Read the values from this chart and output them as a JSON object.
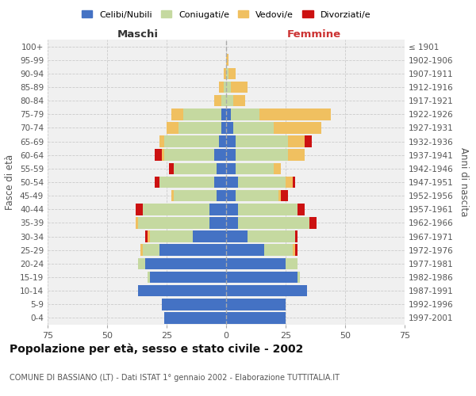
{
  "age_groups": [
    "0-4",
    "5-9",
    "10-14",
    "15-19",
    "20-24",
    "25-29",
    "30-34",
    "35-39",
    "40-44",
    "45-49",
    "50-54",
    "55-59",
    "60-64",
    "65-69",
    "70-74",
    "75-79",
    "80-84",
    "85-89",
    "90-94",
    "95-99",
    "100+"
  ],
  "birth_years": [
    "1997-2001",
    "1992-1996",
    "1987-1991",
    "1982-1986",
    "1977-1981",
    "1972-1976",
    "1967-1971",
    "1962-1966",
    "1957-1961",
    "1952-1956",
    "1947-1951",
    "1942-1946",
    "1937-1941",
    "1932-1936",
    "1927-1931",
    "1922-1926",
    "1917-1921",
    "1912-1916",
    "1907-1911",
    "1902-1906",
    "≤ 1901"
  ],
  "male": {
    "celibi": [
      26,
      27,
      37,
      32,
      34,
      28,
      14,
      7,
      7,
      4,
      5,
      4,
      5,
      3,
      2,
      2,
      0,
      0,
      0,
      0,
      0
    ],
    "coniugati": [
      0,
      0,
      0,
      1,
      3,
      7,
      18,
      30,
      28,
      18,
      23,
      18,
      21,
      23,
      18,
      16,
      2,
      1,
      0,
      0,
      0
    ],
    "vedovi": [
      0,
      0,
      0,
      0,
      0,
      1,
      1,
      1,
      0,
      1,
      0,
      0,
      1,
      2,
      5,
      5,
      3,
      2,
      1,
      0,
      0
    ],
    "divorziati": [
      0,
      0,
      0,
      0,
      0,
      0,
      1,
      0,
      3,
      0,
      2,
      2,
      3,
      0,
      0,
      0,
      0,
      0,
      0,
      0,
      0
    ]
  },
  "female": {
    "nubili": [
      25,
      25,
      34,
      30,
      25,
      16,
      9,
      5,
      5,
      4,
      5,
      4,
      4,
      4,
      3,
      2,
      0,
      0,
      0,
      0,
      0
    ],
    "coniugate": [
      0,
      0,
      0,
      1,
      5,
      12,
      20,
      30,
      25,
      18,
      20,
      16,
      22,
      22,
      17,
      12,
      3,
      2,
      1,
      0,
      0
    ],
    "vedove": [
      0,
      0,
      0,
      0,
      0,
      1,
      0,
      0,
      0,
      1,
      3,
      3,
      7,
      7,
      20,
      30,
      5,
      7,
      3,
      1,
      0
    ],
    "divorziate": [
      0,
      0,
      0,
      0,
      0,
      1,
      1,
      3,
      3,
      3,
      1,
      0,
      0,
      3,
      0,
      0,
      0,
      0,
      0,
      0,
      0
    ]
  },
  "colors": {
    "celibi": "#4472c4",
    "coniugati": "#c5d9a0",
    "vedovi": "#f0c060",
    "divorziati": "#cc1111"
  },
  "xlim": 75,
  "title": "Popolazione per età, sesso e stato civile - 2002",
  "subtitle": "COMUNE DI BASSIANO (LT) - Dati ISTAT 1° gennaio 2002 - Elaborazione TUTTITALIA.IT",
  "ylabel_left": "Fasce di età",
  "ylabel_right": "Anni di nascita",
  "xlabel_left": "Maschi",
  "xlabel_right": "Femmine",
  "legend_labels": [
    "Celibi/Nubili",
    "Coniugati/e",
    "Vedovi/e",
    "Divorziati/e"
  ],
  "bg_color": "#f0f0f0",
  "grid_color": "#cccccc"
}
